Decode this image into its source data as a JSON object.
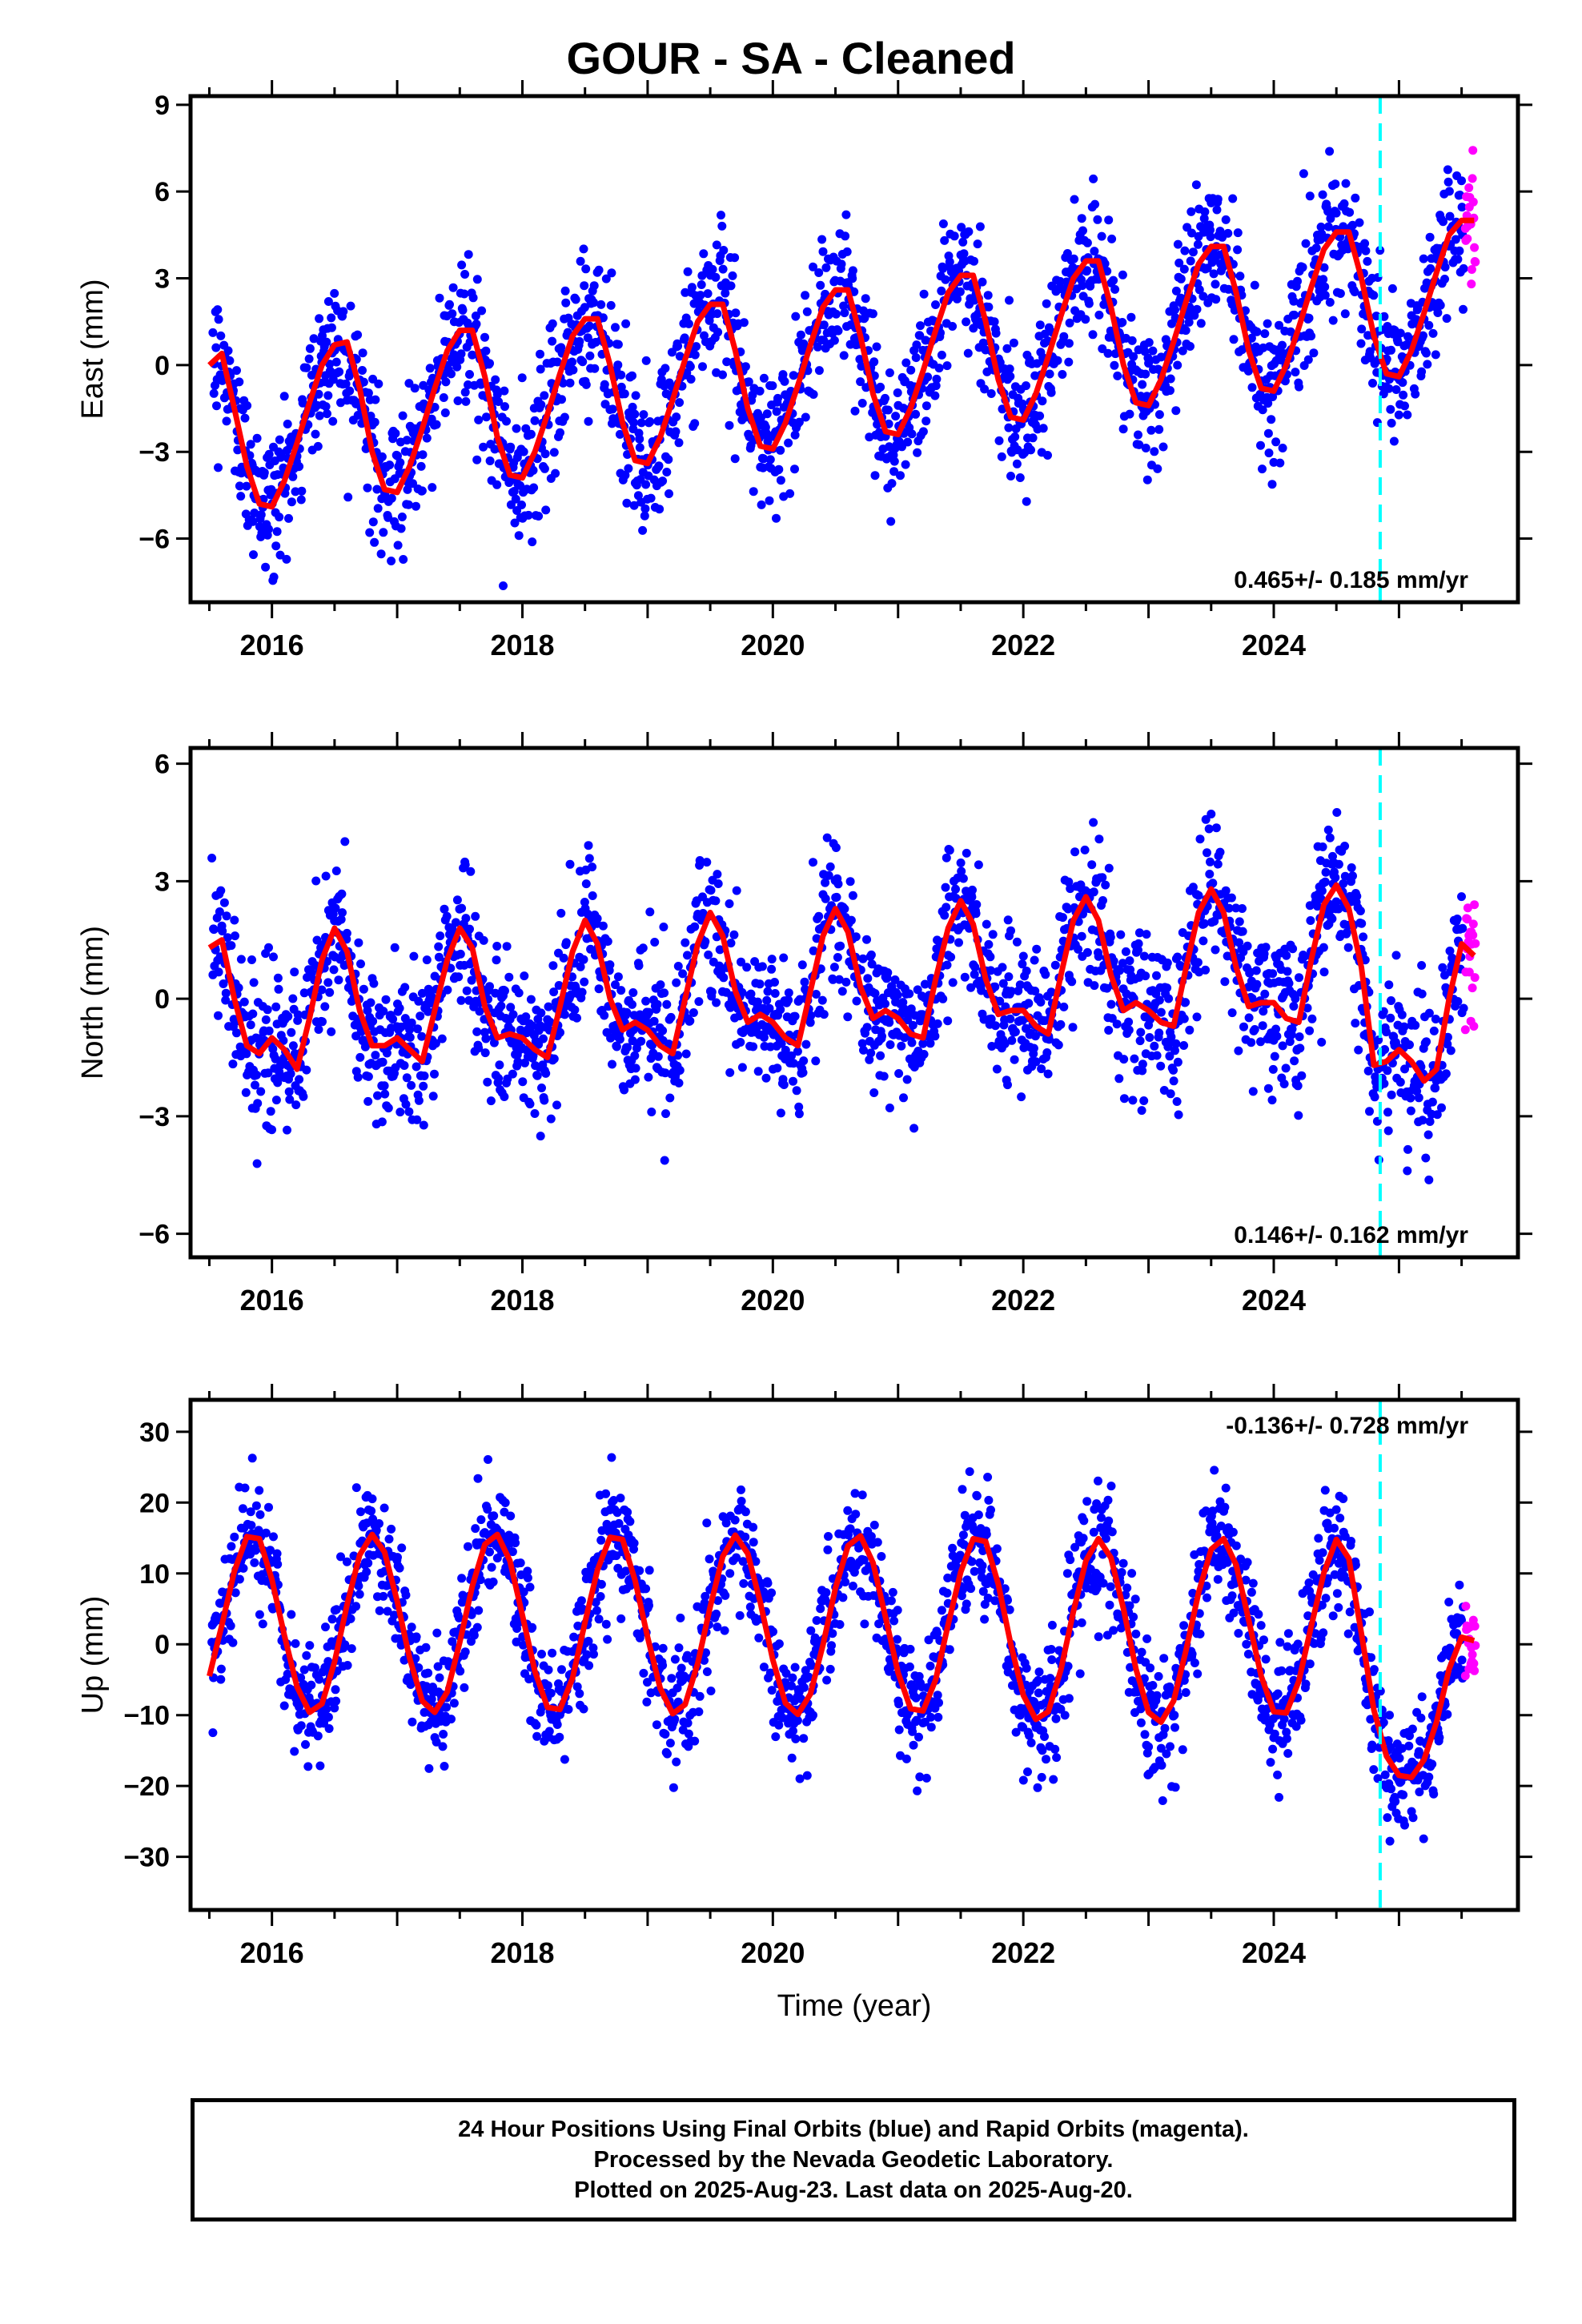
{
  "figure": {
    "title": "GOUR  - SA - Cleaned",
    "xlabel": "Time (year)",
    "caption": [
      "24 Hour Positions Using Final Orbits (blue) and Rapid Orbits (magenta).",
      "Processed by the Nevada Geodetic Laboratory.",
      "Plotted on 2025-Aug-23. Last data on 2025-Aug-20."
    ],
    "colors": {
      "final": "#0000ff",
      "rapid": "#ff00ff",
      "model": "#ff0000",
      "marker": "#00ffff"
    },
    "marker_year": 2024.85
  },
  "chart_data": [
    {
      "type": "scatter",
      "component": "east",
      "ylabel": "East (mm)",
      "xlim": [
        2015.35,
        2025.95
      ],
      "ylim": [
        -8.2,
        9.3
      ],
      "yticks": [
        -6,
        -3,
        0,
        3,
        6,
        9
      ],
      "xticks": [
        2016,
        2018,
        2020,
        2022,
        2024
      ],
      "trend_label": "0.465+/- 0.185 mm/yr",
      "trend_position": "bottom-right",
      "model_curve": {
        "x": [
          2015.5,
          2015.6,
          2015.7,
          2015.8,
          2015.9,
          2016.0,
          2016.1,
          2016.2,
          2016.3,
          2016.4,
          2016.5,
          2016.6,
          2016.7,
          2016.8,
          2016.9,
          2017.0,
          2017.1,
          2017.2,
          2017.3,
          2017.4,
          2017.5,
          2017.6,
          2017.7,
          2017.8,
          2017.9,
          2018.0,
          2018.1,
          2018.2,
          2018.3,
          2018.4,
          2018.5,
          2018.6,
          2018.7,
          2018.8,
          2018.9,
          2019.0,
          2019.1,
          2019.2,
          2019.3,
          2019.4,
          2019.5,
          2019.6,
          2019.7,
          2019.8,
          2019.9,
          2020.0,
          2020.1,
          2020.2,
          2020.3,
          2020.4,
          2020.5,
          2020.6,
          2020.7,
          2020.8,
          2020.9,
          2021.0,
          2021.1,
          2021.2,
          2021.3,
          2021.4,
          2021.5,
          2021.6,
          2021.7,
          2021.8,
          2021.9,
          2022.0,
          2022.1,
          2022.2,
          2022.3,
          2022.4,
          2022.5,
          2022.6,
          2022.7,
          2022.8,
          2022.9,
          2023.0,
          2023.1,
          2023.2,
          2023.3,
          2023.4,
          2023.5,
          2023.6,
          2023.7,
          2023.8,
          2023.9,
          2024.0,
          2024.1,
          2024.2,
          2024.3,
          2024.4,
          2024.5,
          2024.6,
          2024.7,
          2024.8,
          2024.9,
          2025.0,
          2025.1,
          2025.2,
          2025.3,
          2025.4,
          2025.5,
          2025.6
        ],
        "y": [
          0.0,
          0.4,
          -1.5,
          -3.5,
          -4.8,
          -4.9,
          -4.0,
          -2.7,
          -1.3,
          0.0,
          0.7,
          0.8,
          -0.8,
          -3.0,
          -4.3,
          -4.4,
          -3.5,
          -2.2,
          -0.8,
          0.5,
          1.2,
          1.2,
          -0.4,
          -2.5,
          -3.8,
          -3.9,
          -3.0,
          -1.7,
          -0.3,
          1.0,
          1.6,
          1.6,
          0.0,
          -2.0,
          -3.3,
          -3.4,
          -2.5,
          -1.2,
          0.2,
          1.5,
          2.1,
          2.1,
          0.5,
          -1.5,
          -2.8,
          -2.9,
          -2.0,
          -0.7,
          0.7,
          2.0,
          2.6,
          2.6,
          1.0,
          -1.0,
          -2.3,
          -2.4,
          -1.5,
          -0.2,
          1.2,
          2.5,
          3.1,
          3.1,
          1.5,
          -0.5,
          -1.8,
          -1.9,
          -1.0,
          0.3,
          1.7,
          3.0,
          3.6,
          3.6,
          2.0,
          0.0,
          -1.3,
          -1.4,
          -0.5,
          0.8,
          2.2,
          3.5,
          4.1,
          4.1,
          2.5,
          0.5,
          -0.8,
          -0.9,
          0.0,
          1.3,
          2.7,
          4.0,
          4.6,
          4.6,
          3.0,
          1.0,
          -0.3,
          -0.4,
          0.5,
          1.8,
          3.2,
          4.5,
          5.0,
          5.0
        ]
      }
    },
    {
      "type": "scatter",
      "component": "north",
      "ylabel": "North (mm)",
      "xlim": [
        2015.35,
        2025.95
      ],
      "ylim": [
        -6.6,
        6.4
      ],
      "yticks": [
        -6,
        -3,
        0,
        3,
        6
      ],
      "xticks": [
        2016,
        2018,
        2020,
        2022,
        2024
      ],
      "trend_label": "0.146+/- 0.162 mm/yr",
      "trend_position": "bottom-right",
      "model_curve": {
        "x": [
          2015.5,
          2015.6,
          2015.7,
          2015.8,
          2015.9,
          2016.0,
          2016.1,
          2016.2,
          2016.3,
          2016.4,
          2016.5,
          2016.6,
          2016.7,
          2016.8,
          2016.9,
          2017.0,
          2017.1,
          2017.2,
          2017.3,
          2017.4,
          2017.5,
          2017.6,
          2017.7,
          2017.8,
          2017.9,
          2018.0,
          2018.1,
          2018.2,
          2018.3,
          2018.4,
          2018.5,
          2018.6,
          2018.7,
          2018.8,
          2018.9,
          2019.0,
          2019.1,
          2019.2,
          2019.3,
          2019.4,
          2019.5,
          2019.6,
          2019.7,
          2019.8,
          2019.9,
          2020.0,
          2020.1,
          2020.2,
          2020.3,
          2020.4,
          2020.5,
          2020.6,
          2020.7,
          2020.8,
          2020.9,
          2021.0,
          2021.1,
          2021.2,
          2021.3,
          2021.4,
          2021.5,
          2021.6,
          2021.7,
          2021.8,
          2021.9,
          2022.0,
          2022.1,
          2022.2,
          2022.3,
          2022.4,
          2022.5,
          2022.6,
          2022.7,
          2022.8,
          2022.9,
          2023.0,
          2023.1,
          2023.2,
          2023.3,
          2023.4,
          2023.5,
          2023.6,
          2023.7,
          2023.8,
          2023.9,
          2024.0,
          2024.1,
          2024.2,
          2024.3,
          2024.4,
          2024.5,
          2024.6,
          2024.7,
          2024.8,
          2024.9,
          2025.0,
          2025.1,
          2025.2,
          2025.3,
          2025.4,
          2025.5,
          2025.6
        ],
        "y": [
          1.3,
          1.5,
          0.0,
          -1.2,
          -1.4,
          -1.0,
          -1.3,
          -1.8,
          -0.5,
          1.0,
          1.8,
          1.2,
          -0.3,
          -1.2,
          -1.2,
          -1.0,
          -1.3,
          -1.6,
          -0.3,
          1.0,
          1.8,
          1.3,
          -0.2,
          -1.0,
          -0.9,
          -1.0,
          -1.3,
          -1.5,
          -0.2,
          1.2,
          2.0,
          1.4,
          0.0,
          -0.8,
          -0.6,
          -0.8,
          -1.2,
          -1.4,
          0.0,
          1.4,
          2.2,
          1.6,
          0.2,
          -0.6,
          -0.4,
          -0.6,
          -1.0,
          -1.2,
          0.2,
          1.6,
          2.3,
          1.7,
          0.3,
          -0.5,
          -0.3,
          -0.5,
          -0.9,
          -1.0,
          0.5,
          1.8,
          2.5,
          1.9,
          0.5,
          -0.4,
          -0.3,
          -0.3,
          -0.7,
          -0.9,
          0.6,
          2.0,
          2.6,
          2.0,
          0.6,
          -0.3,
          -0.1,
          -0.3,
          -0.6,
          -0.7,
          0.8,
          2.2,
          2.8,
          2.2,
          0.8,
          -0.2,
          -0.1,
          -0.1,
          -0.5,
          -0.6,
          1.0,
          2.4,
          2.9,
          2.3,
          0.8,
          -1.7,
          -1.6,
          -1.3,
          -1.6,
          -2.1,
          -1.8,
          0.0,
          1.4,
          1.1
        ]
      }
    },
    {
      "type": "scatter",
      "component": "up",
      "ylabel": "Up (mm)",
      "xlim": [
        2015.35,
        2025.95
      ],
      "ylim": [
        -37.5,
        34.5
      ],
      "yticks": [
        -30,
        -20,
        -10,
        0,
        10,
        20,
        30
      ],
      "xticks": [
        2016,
        2018,
        2020,
        2022,
        2024
      ],
      "trend_label": "-0.136+/- 0.728 mm/yr",
      "trend_position": "top-right",
      "model_curve": {
        "x": [
          2015.5,
          2015.6,
          2015.7,
          2015.8,
          2015.9,
          2016.0,
          2016.1,
          2016.2,
          2016.3,
          2016.4,
          2016.5,
          2016.6,
          2016.7,
          2016.8,
          2016.9,
          2017.0,
          2017.1,
          2017.2,
          2017.3,
          2017.4,
          2017.5,
          2017.6,
          2017.7,
          2017.8,
          2017.9,
          2018.0,
          2018.1,
          2018.2,
          2018.3,
          2018.4,
          2018.5,
          2018.6,
          2018.7,
          2018.8,
          2018.9,
          2019.0,
          2019.1,
          2019.2,
          2019.3,
          2019.4,
          2019.5,
          2019.6,
          2019.7,
          2019.8,
          2019.9,
          2020.0,
          2020.1,
          2020.2,
          2020.3,
          2020.4,
          2020.5,
          2020.6,
          2020.7,
          2020.8,
          2020.9,
          2021.0,
          2021.1,
          2021.2,
          2021.3,
          2021.4,
          2021.5,
          2021.6,
          2021.7,
          2021.8,
          2021.9,
          2022.0,
          2022.1,
          2022.2,
          2022.3,
          2022.4,
          2022.5,
          2022.6,
          2022.7,
          2022.8,
          2022.9,
          2023.0,
          2023.1,
          2023.2,
          2023.3,
          2023.4,
          2023.5,
          2023.6,
          2023.7,
          2023.8,
          2023.9,
          2024.0,
          2024.1,
          2024.2,
          2024.3,
          2024.4,
          2024.5,
          2024.6,
          2024.7,
          2024.8,
          2024.9,
          2025.0,
          2025.1,
          2025.2,
          2025.3,
          2025.4,
          2025.5,
          2025.6
        ],
        "y": [
          -4.5,
          2.7,
          10.3,
          15.2,
          14.9,
          9.1,
          1.2,
          -6.0,
          -9.6,
          -8.4,
          -2.5,
          5.6,
          12.6,
          15.5,
          13.0,
          6.1,
          -2.0,
          -8.0,
          -9.6,
          -6.7,
          0.3,
          8.2,
          14.1,
          15.5,
          11.8,
          4.1,
          -3.8,
          -8.9,
          -9.2,
          -4.8,
          3.1,
          10.5,
          15.1,
          14.8,
          9.0,
          1.0,
          -6.2,
          -9.8,
          -8.5,
          -2.7,
          5.3,
          12.4,
          15.4,
          12.8,
          5.9,
          -2.2,
          -8.3,
          -9.9,
          -7.0,
          -0.1,
          7.9,
          13.9,
          15.3,
          11.5,
          3.8,
          -4.0,
          -9.1,
          -9.4,
          -5.0,
          2.8,
          10.2,
          14.9,
          14.5,
          8.5,
          0.0,
          -7.2,
          -10.6,
          -9.5,
          -3.6,
          4.6,
          11.8,
          14.9,
          12.2,
          5.0,
          -3.5,
          -9.6,
          -11.0,
          -8.0,
          -0.8,
          7.3,
          13.4,
          14.9,
          11.2,
          3.4,
          -4.5,
          -9.5,
          -9.7,
          -5.2,
          2.6,
          10.1,
          14.8,
          12.1,
          1.5,
          -9.3,
          -15.8,
          -18.5,
          -18.8,
          -16.3,
          -11.0,
          -3.5,
          1.0,
          0.5
        ]
      }
    }
  ]
}
